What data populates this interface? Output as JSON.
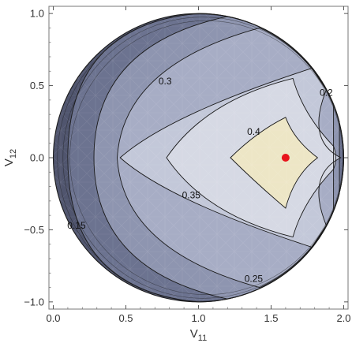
{
  "chart_data": {
    "type": "contour",
    "xlabel": "V",
    "xlabel_sub": "11",
    "ylabel": "V",
    "ylabel_sub": "12",
    "xlim": [
      -0.03,
      2.03
    ],
    "ylim": [
      -1.05,
      1.05
    ],
    "x_ticks": [
      {
        "value": 0.0,
        "label": "0.0"
      },
      {
        "value": 0.5,
        "label": "0.5"
      },
      {
        "value": 1.0,
        "label": "1.0"
      },
      {
        "value": 1.5,
        "label": "1.5"
      },
      {
        "value": 2.0,
        "label": "2.0"
      }
    ],
    "y_ticks": [
      {
        "value": 1.0,
        "label": "1.0"
      },
      {
        "value": 0.5,
        "label": "0.5"
      },
      {
        "value": 0.0,
        "label": "0.0"
      },
      {
        "value": -0.5,
        "label": "-0.5"
      },
      {
        "value": -1.0,
        "label": "-1.0"
      }
    ],
    "domain_circle": {
      "center": [
        1.0,
        0.0
      ],
      "radius": 1.0
    },
    "contour_levels": [
      {
        "level": "0.15",
        "label": "0.15",
        "label_pos": [
          0.16,
          -0.47
        ]
      },
      {
        "level": "0.2",
        "label": "0.2",
        "label_pos": [
          1.88,
          0.45
        ]
      },
      {
        "level": "0.25",
        "label": "0.25",
        "label_pos": [
          1.38,
          -0.84
        ]
      },
      {
        "level": "0.3",
        "label": "0.3",
        "label_pos": [
          0.77,
          0.53
        ]
      },
      {
        "level": "0.35",
        "label": "0.35",
        "label_pos": [
          0.95,
          -0.26
        ]
      },
      {
        "level": "0.4",
        "label": "0.4",
        "label_pos": [
          1.38,
          0.18
        ]
      }
    ],
    "maximum_point": {
      "x": 1.6,
      "y": 0.0,
      "color": "#e8141c"
    },
    "colors": {
      "outer": "#50556e",
      "band_015": "#6c7390",
      "band_02": "#8e95b0",
      "band_025": "#a7adc5",
      "band_03": "#c3c8d9",
      "band_035": "#d6d9e4",
      "core": "#ede6c6",
      "line": "#1a1a1a",
      "frame": "#777777"
    }
  }
}
